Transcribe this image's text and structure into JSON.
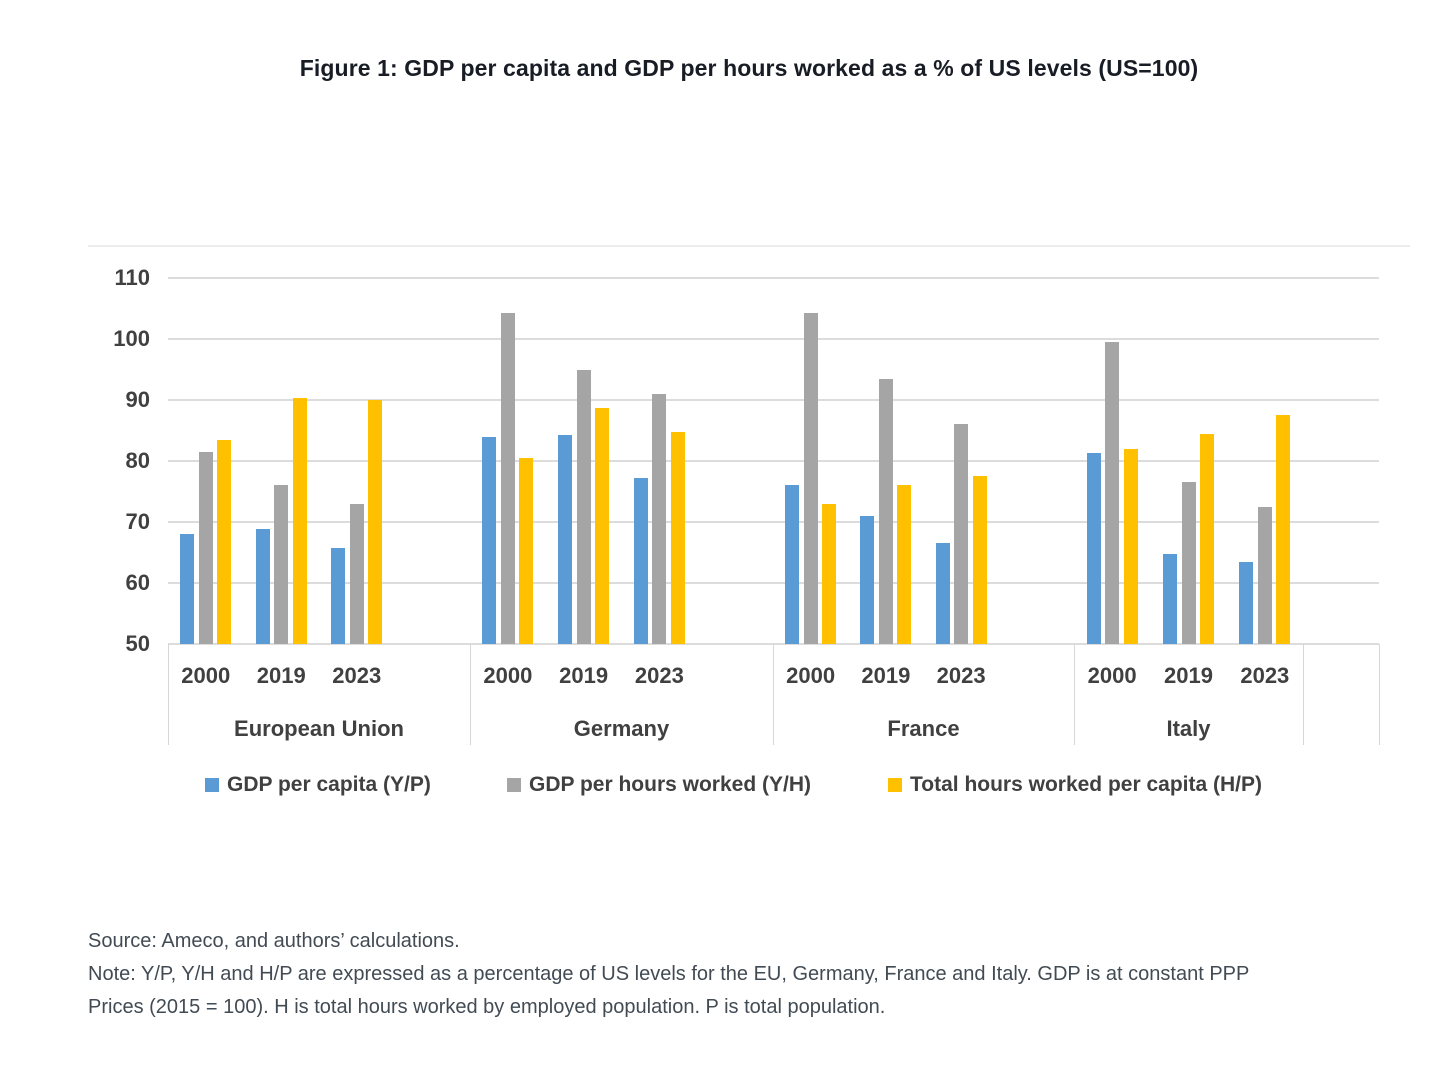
{
  "page": {
    "title": "Figure 1: GDP per capita and GDP per hours worked as a % of US levels (US=100)",
    "source_line": "Source: Ameco, and authors’ calculations.",
    "note_line1": "Note: Y/P, Y/H and H/P are expressed as a percentage of US levels for the EU, Germany, France and Italy. GDP is at constant PPP",
    "note_line2": "Prices (2015 = 100). H is total hours worked by employed population. P is total population."
  },
  "chart_data": {
    "type": "bar",
    "title": "Figure 1: GDP per capita and GDP per hours worked as a % of US levels (US=100)",
    "groups": [
      "European Union",
      "Germany",
      "France",
      "Italy"
    ],
    "years": [
      "2000",
      "2019",
      "2023"
    ],
    "series": [
      {
        "name": "GDP per capita (Y/P)",
        "color": "#5B9BD5",
        "values": [
          [
            68.0,
            68.8,
            65.8
          ],
          [
            84.0,
            84.2,
            77.2
          ],
          [
            76.0,
            71.0,
            66.5
          ],
          [
            81.3,
            64.7,
            63.5
          ]
        ]
      },
      {
        "name": "GDP per hours worked (Y/H)",
        "color": "#A5A5A5",
        "values": [
          [
            81.5,
            76.0,
            73.0
          ],
          [
            104.3,
            95.0,
            91.0
          ],
          [
            104.2,
            93.5,
            86.0
          ],
          [
            99.5,
            76.5,
            72.5
          ]
        ]
      },
      {
        "name": "Total hours worked per capita (H/P)",
        "color": "#FFC000",
        "values": [
          [
            83.5,
            90.3,
            90.0
          ],
          [
            80.5,
            88.7,
            84.8
          ],
          [
            73.0,
            76.0,
            77.5
          ],
          [
            82.0,
            84.5,
            87.5
          ]
        ]
      }
    ],
    "ylim": [
      50,
      110
    ],
    "yticks": [
      110,
      100,
      90,
      80,
      70,
      60,
      50
    ],
    "grid": true,
    "legend_position": "bottom",
    "xlabel": "",
    "ylabel": ""
  }
}
